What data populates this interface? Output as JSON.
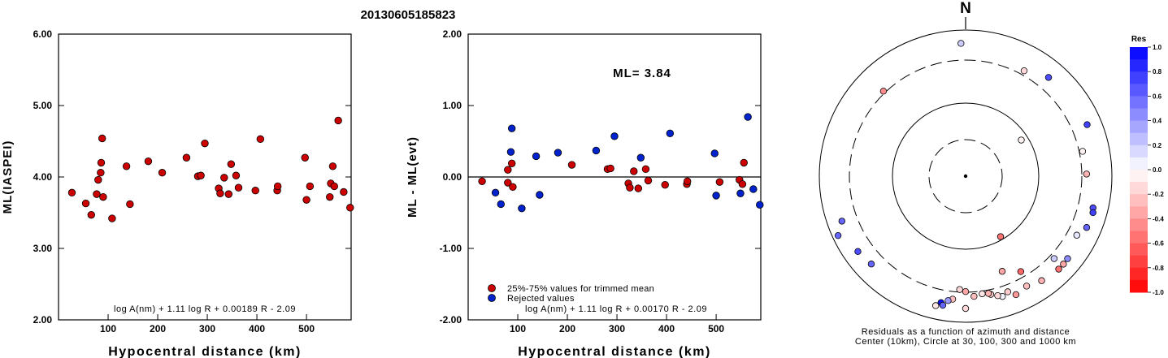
{
  "title": "20130605185823",
  "colors": {
    "trimmed": "#cc0000",
    "rejected": "#0022cc"
  },
  "chart_data": [
    {
      "type": "scatter",
      "xlabel": "Hypocentral distance (km)",
      "ylabel": "ML(IASPEI)",
      "xlim": [
        0,
        590
      ],
      "ylim": [
        2.0,
        6.0
      ],
      "x_ticks": [
        100,
        200,
        300,
        400,
        500
      ],
      "y_ticks": [
        {
          "v": 2.0,
          "label": "2.00"
        },
        {
          "v": 3.0,
          "label": "3.00"
        },
        {
          "v": 4.0,
          "label": "4.00"
        },
        {
          "v": 5.0,
          "label": "5.00"
        },
        {
          "v": 6.0,
          "label": "6.00"
        }
      ],
      "formula": "log A(nm) + 1.11 log R + 0.00189 R - 2.09",
      "points": [
        [
          27,
          3.78
        ],
        [
          55,
          3.63
        ],
        [
          66,
          3.47
        ],
        [
          77,
          3.76
        ],
        [
          80,
          3.96
        ],
        [
          85,
          4.06
        ],
        [
          86,
          4.2
        ],
        [
          88,
          4.54
        ],
        [
          90,
          3.72
        ],
        [
          108,
          3.42
        ],
        [
          137,
          4.15
        ],
        [
          144,
          3.62
        ],
        [
          181,
          4.22
        ],
        [
          209,
          4.06
        ],
        [
          258,
          4.27
        ],
        [
          281,
          4.01
        ],
        [
          287,
          4.02
        ],
        [
          295,
          4.47
        ],
        [
          323,
          3.84
        ],
        [
          326,
          3.77
        ],
        [
          334,
          3.99
        ],
        [
          343,
          3.76
        ],
        [
          348,
          4.18
        ],
        [
          358,
          4.02
        ],
        [
          363,
          3.85
        ],
        [
          397,
          3.81
        ],
        [
          407,
          4.53
        ],
        [
          441,
          3.81
        ],
        [
          442,
          3.87
        ],
        [
          497,
          4.27
        ],
        [
          500,
          3.68
        ],
        [
          507,
          3.87
        ],
        [
          547,
          3.72
        ],
        [
          549,
          3.91
        ],
        [
          553,
          4.15
        ],
        [
          556,
          3.87
        ],
        [
          564,
          4.79
        ],
        [
          575,
          3.79
        ],
        [
          588,
          3.57
        ]
      ]
    },
    {
      "type": "scatter",
      "xlabel": "Hypocentral distance (km)",
      "ylabel": "ML - ML(evt)",
      "xlim": [
        0,
        590
      ],
      "ylim": [
        -2.0,
        2.0
      ],
      "x_ticks": [
        100,
        200,
        300,
        400,
        500
      ],
      "y_ticks": [
        {
          "v": -2.0,
          "label": "-2.00"
        },
        {
          "v": -1.0,
          "label": "-1.00"
        },
        {
          "v": 0.0,
          "label": "0.00"
        },
        {
          "v": 1.0,
          "label": "1.00"
        },
        {
          "v": 2.0,
          "label": "2.00"
        }
      ],
      "annotation": "ML= 3.84",
      "formula": "log A(nm) + 1.11 log R + 0.00170 R - 2.09",
      "legend": [
        {
          "key": "trimmed",
          "label": "25%-75% values for trimmed mean"
        },
        {
          "key": "rejected",
          "label": "Rejected values"
        }
      ],
      "points_trimmed": [
        [
          28,
          -0.06
        ],
        [
          80,
          -0.08
        ],
        [
          80,
          0.1
        ],
        [
          88,
          0.19
        ],
        [
          90,
          -0.14
        ],
        [
          209,
          0.17
        ],
        [
          281,
          0.11
        ],
        [
          287,
          0.12
        ],
        [
          323,
          -0.09
        ],
        [
          326,
          -0.15
        ],
        [
          334,
          0.08
        ],
        [
          343,
          -0.16
        ],
        [
          358,
          0.11
        ],
        [
          363,
          -0.05
        ],
        [
          397,
          -0.11
        ],
        [
          441,
          -0.1
        ],
        [
          442,
          -0.06
        ],
        [
          507,
          -0.07
        ],
        [
          547,
          -0.04
        ],
        [
          553,
          -0.1
        ],
        [
          556,
          0.2
        ]
      ],
      "points_rejected": [
        [
          55,
          -0.22
        ],
        [
          66,
          -0.38
        ],
        [
          86,
          0.35
        ],
        [
          88,
          0.68
        ],
        [
          108,
          -0.44
        ],
        [
          137,
          0.29
        ],
        [
          144,
          -0.25
        ],
        [
          181,
          0.34
        ],
        [
          258,
          0.37
        ],
        [
          295,
          0.57
        ],
        [
          348,
          0.27
        ],
        [
          407,
          0.61
        ],
        [
          497,
          0.33
        ],
        [
          500,
          -0.26
        ],
        [
          549,
          -0.23
        ],
        [
          564,
          0.84
        ],
        [
          575,
          -0.17
        ],
        [
          588,
          -0.39
        ]
      ]
    },
    {
      "type": "scatter",
      "subtype": "polar",
      "north_label": "N",
      "caption_line1": "Residuals as a function of azimuth and distance",
      "caption_line2": "Center (10km), Circle at 30, 100, 300 and 1000 km",
      "rings_km": [
        10,
        30,
        100,
        300,
        1000
      ],
      "colorbar": {
        "title": "Res",
        "ticks": [
          {
            "v": 1.0,
            "label": "1.0"
          },
          {
            "v": 0.8,
            "label": "0.8"
          },
          {
            "v": 0.6,
            "label": "0.6"
          },
          {
            "v": 0.4,
            "label": "0.4"
          },
          {
            "v": 0.2,
            "label": "0.2"
          },
          {
            "v": 0.0,
            "label": "0.0"
          },
          {
            "v": -0.2,
            "label": "-0.2"
          },
          {
            "v": -0.4,
            "label": "-0.4"
          },
          {
            "v": -0.6,
            "label": "-0.6"
          },
          {
            "v": -0.8,
            "label": "-0.8"
          },
          {
            "v": -1.0,
            "label": "-1.0"
          }
        ]
      },
      "stations": [
        {
          "azimuth": 358,
          "distance_km": 588,
          "res": 0.2
        },
        {
          "azimuth": 316,
          "distance_km": 326,
          "res": -0.45
        },
        {
          "azimuth": 29,
          "distance_km": 358,
          "res": -0.15
        },
        {
          "azimuth": 40,
          "distance_km": 500,
          "res": 0.7
        },
        {
          "azimuth": 67,
          "distance_km": 564,
          "res": 0.75
        },
        {
          "azimuth": 89,
          "distance_km": 363,
          "res": -0.3
        },
        {
          "azimuth": 78,
          "distance_km": 343,
          "res": -0.05
        },
        {
          "azimuth": 57,
          "distance_km": 80,
          "res": -0.05
        },
        {
          "azimuth": 104,
          "distance_km": 549,
          "res": 0.7
        },
        {
          "azimuth": 106,
          "distance_km": 575,
          "res": 0.75
        },
        {
          "azimuth": 113,
          "distance_km": 553,
          "res": 0.6
        },
        {
          "azimuth": 118,
          "distance_km": 442,
          "res": 0.1
        },
        {
          "azimuth": 129,
          "distance_km": 547,
          "res": 0.45
        },
        {
          "azimuth": 132,
          "distance_km": 556,
          "res": -0.35
        },
        {
          "azimuth": 135,
          "distance_km": 556,
          "res": -0.55
        },
        {
          "azimuth": 133,
          "distance_km": 363,
          "res": 0.2
        },
        {
          "azimuth": 144,
          "distance_km": 507,
          "res": -0.3
        },
        {
          "azimuth": 151,
          "distance_km": 441,
          "res": -0.25
        },
        {
          "azimuth": 157,
          "distance_km": 497,
          "res": -0.4
        },
        {
          "azimuth": 160,
          "distance_km": 397,
          "res": -0.2
        },
        {
          "azimuth": 163,
          "distance_km": 442,
          "res": 0.05
        },
        {
          "azimuth": 165,
          "distance_km": 407,
          "res": -0.15
        },
        {
          "azimuth": 168,
          "distance_km": 363,
          "res": -0.2
        },
        {
          "azimuth": 169,
          "distance_km": 343,
          "res": -0.3
        },
        {
          "azimuth": 172,
          "distance_km": 334,
          "res": -0.1
        },
        {
          "azimuth": 176,
          "distance_km": 358,
          "res": -0.25
        },
        {
          "azimuth": 180,
          "distance_km": 295,
          "res": -0.35
        },
        {
          "azimuth": 183,
          "distance_km": 281,
          "res": -0.15
        },
        {
          "azimuth": 186,
          "distance_km": 407,
          "res": -0.25
        },
        {
          "azimuth": 188,
          "distance_km": 441,
          "res": 0.4
        },
        {
          "azimuth": 191,
          "distance_km": 500,
          "res": 0.95
        },
        {
          "azimuth": 193,
          "distance_km": 588,
          "res": -0.1
        },
        {
          "azimuth": 190,
          "distance_km": 548,
          "res": 0.6
        },
        {
          "azimuth": 180,
          "distance_km": 575,
          "res": -0.15
        },
        {
          "azimuth": 150,
          "distance_km": 90,
          "res": -0.55
        },
        {
          "azimuth": 150,
          "distance_km": 258,
          "res": -0.6
        },
        {
          "azimuth": 159,
          "distance_km": 209,
          "res": -0.35
        },
        {
          "azimuth": 227,
          "distance_km": 500,
          "res": 0.6
        },
        {
          "azimuth": 235,
          "distance_km": 553,
          "res": 0.7
        },
        {
          "azimuth": 245,
          "distance_km": 800,
          "res": 0.6
        },
        {
          "azimuth": 250,
          "distance_km": 556,
          "res": 0.6
        }
      ]
    }
  ]
}
